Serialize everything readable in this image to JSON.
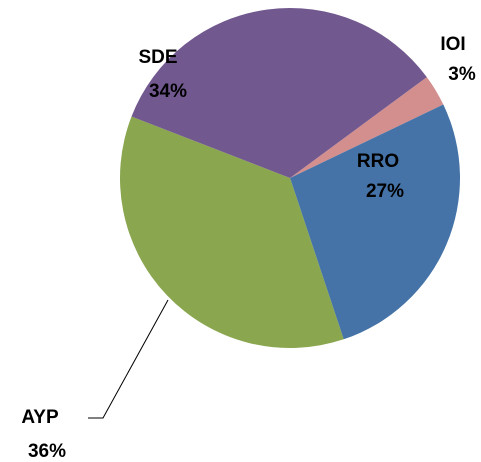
{
  "chart_data": {
    "type": "pie",
    "categories": [
      "IOI",
      "RRO",
      "AYP",
      "SDE"
    ],
    "values": [
      3,
      27,
      36,
      34
    ],
    "value_labels": [
      "3%",
      "27%",
      "36%",
      "34%"
    ],
    "colors": [
      "#d38f8e",
      "#4573a7",
      "#8aa64f",
      "#71588f"
    ]
  }
}
